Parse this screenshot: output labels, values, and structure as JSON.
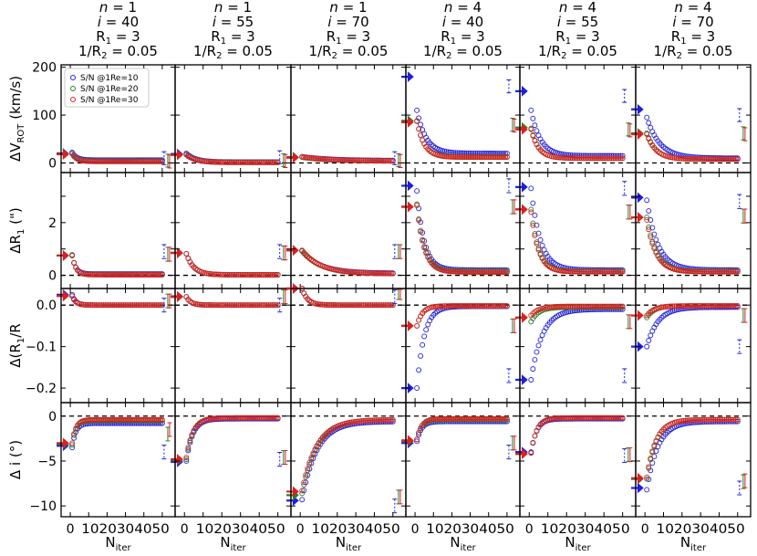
{
  "chart_data": {
    "type": "scatter",
    "columns": [
      {
        "title": [
          "n = 1",
          "i = 40",
          "R1 = 3",
          "1/R2 = 0.05"
        ],
        "n": 1,
        "i": 40
      },
      {
        "title": [
          "n = 1",
          "i = 55",
          "R1 = 3",
          "1/R2 = 0.05"
        ],
        "n": 1,
        "i": 55
      },
      {
        "title": [
          "n = 1",
          "i = 70",
          "R1 = 3",
          "1/R2 = 0.05"
        ],
        "n": 1,
        "i": 70
      },
      {
        "title": [
          "n = 4",
          "i = 40",
          "R1 = 3",
          "1/R2 = 0.05"
        ],
        "n": 4,
        "i": 40
      },
      {
        "title": [
          "n = 4",
          "i = 55",
          "R1 = 3",
          "1/R2 = 0.05"
        ],
        "n": 4,
        "i": 55
      },
      {
        "title": [
          "n = 4",
          "i = 70",
          "R1 = 3",
          "1/R2 = 0.05"
        ],
        "n": 4,
        "i": 70
      }
    ],
    "xlabel": "N_iter",
    "xlim": [
      -5,
      57
    ],
    "xticks": [
      0,
      10,
      20,
      30,
      40,
      50
    ],
    "xtick_labels": [
      "0",
      "10",
      "20",
      "30",
      "40",
      "50"
    ],
    "rows": [
      {
        "ylabel": "ΔV_ROT (km/s)",
        "ylim": [
          -20,
          205
        ],
        "yticks": [
          0,
          100,
          200
        ],
        "ytick_labels": [
          "0",
          "100",
          "200"
        ],
        "reference": 0
      },
      {
        "ylabel": "ΔR_1 (\")",
        "ylim": [
          -0.5,
          3.9
        ],
        "yticks": [
          0,
          1,
          2,
          3
        ],
        "ytick_labels": [
          "0",
          "",
          "2",
          ""
        ],
        "reference": 0
      },
      {
        "ylabel": "Δ(R_1/R_2)",
        "ylim": [
          -0.235,
          0.04
        ],
        "yticks": [
          0.0,
          -0.1,
          -0.2
        ],
        "ytick_labels": [
          "0.0",
          "−0.1",
          "−0.2"
        ],
        "reference": 0
      },
      {
        "ylabel": "Δ i (°)",
        "ylim": [
          -11.2,
          1.5
        ],
        "yticks": [
          0,
          -5,
          -10
        ],
        "ytick_labels": [
          "0",
          "−5",
          "−10"
        ],
        "reference": 0
      }
    ],
    "legend": {
      "position": "top-left",
      "entries": [
        {
          "label": "S/N @1Re=10",
          "color": "#1f1fdd"
        },
        {
          "label": "S/N @1Re=20",
          "color": "#2a7f2a"
        },
        {
          "label": "S/N @1Re=30",
          "color": "#dd1f1f"
        }
      ]
    },
    "series_colors": {
      "blue": "#1f1fdd",
      "green": "#2a7f2a",
      "red": "#dd1f1f"
    },
    "curves": {
      "note": "[start, end, decay] for blue (S/N=10), green (S/N=20), red (S/N=30); row order ΔV, ΔR1, Δ(R1/R2), Δi",
      "0": [
        [
          [
            22,
            6,
            2.5
          ],
          [
            20,
            4,
            2.5
          ],
          [
            19,
            3,
            2.5
          ]
        ],
        [
          [
            0.75,
            0.05,
            2.0
          ],
          [
            0.75,
            0.03,
            2.0
          ],
          [
            0.78,
            0.02,
            2.0
          ]
        ],
        [
          [
            0.025,
            0.0,
            2.0
          ],
          [
            0.022,
            0.0,
            2.0
          ],
          [
            0.022,
            0.0,
            2.0
          ]
        ],
        [
          [
            -3.5,
            -0.8,
            2.0
          ],
          [
            -3.2,
            -0.5,
            2.0
          ],
          [
            -3.0,
            -0.4,
            2.0
          ]
        ]
      ],
      "1": [
        [
          [
            20,
            2,
            5
          ],
          [
            18,
            1.5,
            5
          ],
          [
            17,
            1,
            5
          ]
        ],
        [
          [
            0.82,
            0.02,
            4
          ],
          [
            0.82,
            0.02,
            4
          ],
          [
            0.82,
            0.02,
            4
          ]
        ],
        [
          [
            0.02,
            0.0,
            2.5
          ],
          [
            0.02,
            0.0,
            2.5
          ],
          [
            0.02,
            0.0,
            2.5
          ]
        ],
        [
          [
            -5.0,
            -0.3,
            3.5
          ],
          [
            -4.8,
            -0.2,
            3.5
          ],
          [
            -4.6,
            -0.2,
            3.5
          ]
        ]
      ],
      "2": [
        [
          [
            13,
            5,
            15
          ],
          [
            12,
            4,
            15
          ],
          [
            13,
            4,
            15
          ]
        ],
        [
          [
            0.92,
            0.08,
            10
          ],
          [
            0.92,
            0.06,
            10
          ],
          [
            0.95,
            0.06,
            10
          ]
        ],
        [
          [
            0.04,
            0.0,
            3
          ],
          [
            0.04,
            0.0,
            3
          ],
          [
            0.04,
            0.0,
            3
          ]
        ],
        [
          [
            -9.3,
            -0.6,
            8
          ],
          [
            -8.6,
            -0.4,
            8
          ],
          [
            -8.3,
            -0.4,
            8
          ]
        ]
      ],
      "3": [
        [
          [
            110,
            20,
            5
          ],
          [
            87,
            13,
            4
          ],
          [
            88,
            12,
            4
          ]
        ],
        [
          [
            3.2,
            0.2,
            4
          ],
          [
            2.7,
            0.15,
            4
          ],
          [
            2.65,
            0.12,
            4
          ]
        ],
        [
          [
            -0.2,
            -0.003,
            4
          ],
          [
            -0.05,
            -0.002,
            3
          ],
          [
            -0.05,
            -0.002,
            3
          ]
        ],
        [
          [
            -2.8,
            -0.6,
            2.5
          ],
          [
            -2.6,
            -0.4,
            2.5
          ],
          [
            -2.6,
            -0.3,
            2.5
          ]
        ]
      ],
      "4": [
        [
          [
            110,
            15,
            5
          ],
          [
            72,
            10,
            4
          ],
          [
            70,
            10,
            4
          ]
        ],
        [
          [
            3.3,
            0.2,
            5
          ],
          [
            2.5,
            0.15,
            4
          ],
          [
            2.4,
            0.13,
            4
          ]
        ],
        [
          [
            -0.18,
            -0.01,
            6
          ],
          [
            -0.04,
            -0.005,
            4
          ],
          [
            -0.025,
            -0.003,
            4
          ]
        ],
        [
          [
            -4.0,
            -0.3,
            3
          ],
          [
            -4.1,
            -0.2,
            3
          ],
          [
            -4.1,
            -0.2,
            3
          ]
        ]
      ],
      "5": [
        [
          [
            95,
            10,
            7
          ],
          [
            62,
            8,
            5
          ],
          [
            60,
            8,
            5
          ]
        ],
        [
          [
            2.85,
            0.2,
            6
          ],
          [
            2.2,
            0.15,
            5
          ],
          [
            2.1,
            0.13,
            5
          ]
        ],
        [
          [
            -0.1,
            -0.005,
            6
          ],
          [
            -0.03,
            -0.002,
            4
          ],
          [
            -0.025,
            -0.002,
            4
          ]
        ],
        [
          [
            -8.2,
            -0.6,
            6
          ],
          [
            -7.0,
            -0.4,
            5
          ],
          [
            -6.8,
            -0.4,
            5
          ]
        ]
      ]
    },
    "arrows_at_x": -3,
    "arrows": {
      "0": [
        [
          20,
          19,
          18
        ],
        [
          0.75,
          0.75,
          0.75
        ],
        [
          0.025,
          0.022,
          0.022
        ],
        [
          -3.3,
          -3.1,
          -3.0
        ]
      ],
      "1": [
        [
          19,
          17,
          17
        ],
        [
          0.85,
          0.85,
          0.85
        ],
        [
          0.021,
          0.02,
          0.02
        ],
        [
          -5.1,
          -4.9,
          -4.8
        ]
      ],
      "2": [
        [
          12,
          12,
          11
        ],
        [
          0.95,
          0.95,
          0.95
        ],
        [
          0.04,
          0.04,
          0.04
        ],
        [
          -9.4,
          -8.8,
          -8.4
        ]
      ],
      "3": [
        [
          180,
          88,
          85
        ],
        [
          3.4,
          2.6,
          2.6
        ],
        [
          -0.2,
          -0.05,
          -0.05
        ],
        [
          -3.0,
          -2.8,
          -2.7
        ]
      ],
      "4": [
        [
          150,
          74,
          70
        ],
        [
          3.35,
          2.5,
          2.5
        ],
        [
          -0.18,
          -0.03,
          -0.03
        ],
        [
          -4.0,
          -4.2,
          -4.2
        ]
      ],
      "5": [
        [
          112,
          62,
          60
        ],
        [
          2.95,
          2.2,
          2.2
        ],
        [
          -0.1,
          -0.025,
          -0.025
        ],
        [
          -8.0,
          -7.0,
          -6.9
        ]
      ]
    },
    "side_errorbars_at_x": [
      51,
      53,
      54
    ],
    "side_markers": {
      "0": [
        [
          10,
          5,
          3
        ],
        [
          0.9,
          0.8,
          0.8
        ],
        [
          0.0,
          0.01,
          0.01
        ],
        [
          -4.0,
          -2.0,
          -1.5
        ]
      ],
      "1": [
        [
          12,
          6,
          4
        ],
        [
          0.9,
          0.85,
          0.85
        ],
        [
          0.0,
          0.02,
          0.02
        ],
        [
          -4.8,
          -4.6,
          -4.6
        ]
      ],
      "2": [
        [
          10,
          6,
          4
        ],
        [
          0.9,
          0.9,
          0.9
        ],
        [
          0.02,
          0.03,
          0.03
        ],
        [
          -10.0,
          -9.0,
          -9.0
        ]
      ],
      "3": [
        [
          160,
          80,
          78
        ],
        [
          3.4,
          2.6,
          2.6
        ],
        [
          -0.17,
          -0.05,
          -0.05
        ],
        [
          -4.0,
          -3.0,
          -3.0
        ]
      ],
      "4": [
        [
          140,
          70,
          68
        ],
        [
          3.3,
          2.4,
          2.4
        ],
        [
          -0.17,
          -0.04,
          -0.04
        ],
        [
          -4.4,
          -4.3,
          -4.3
        ]
      ],
      "5": [
        [
          100,
          62,
          60
        ],
        [
          2.8,
          2.25,
          2.25
        ],
        [
          -0.1,
          -0.025,
          -0.025
        ],
        [
          -8.0,
          -7.3,
          -7.2
        ]
      ]
    }
  }
}
